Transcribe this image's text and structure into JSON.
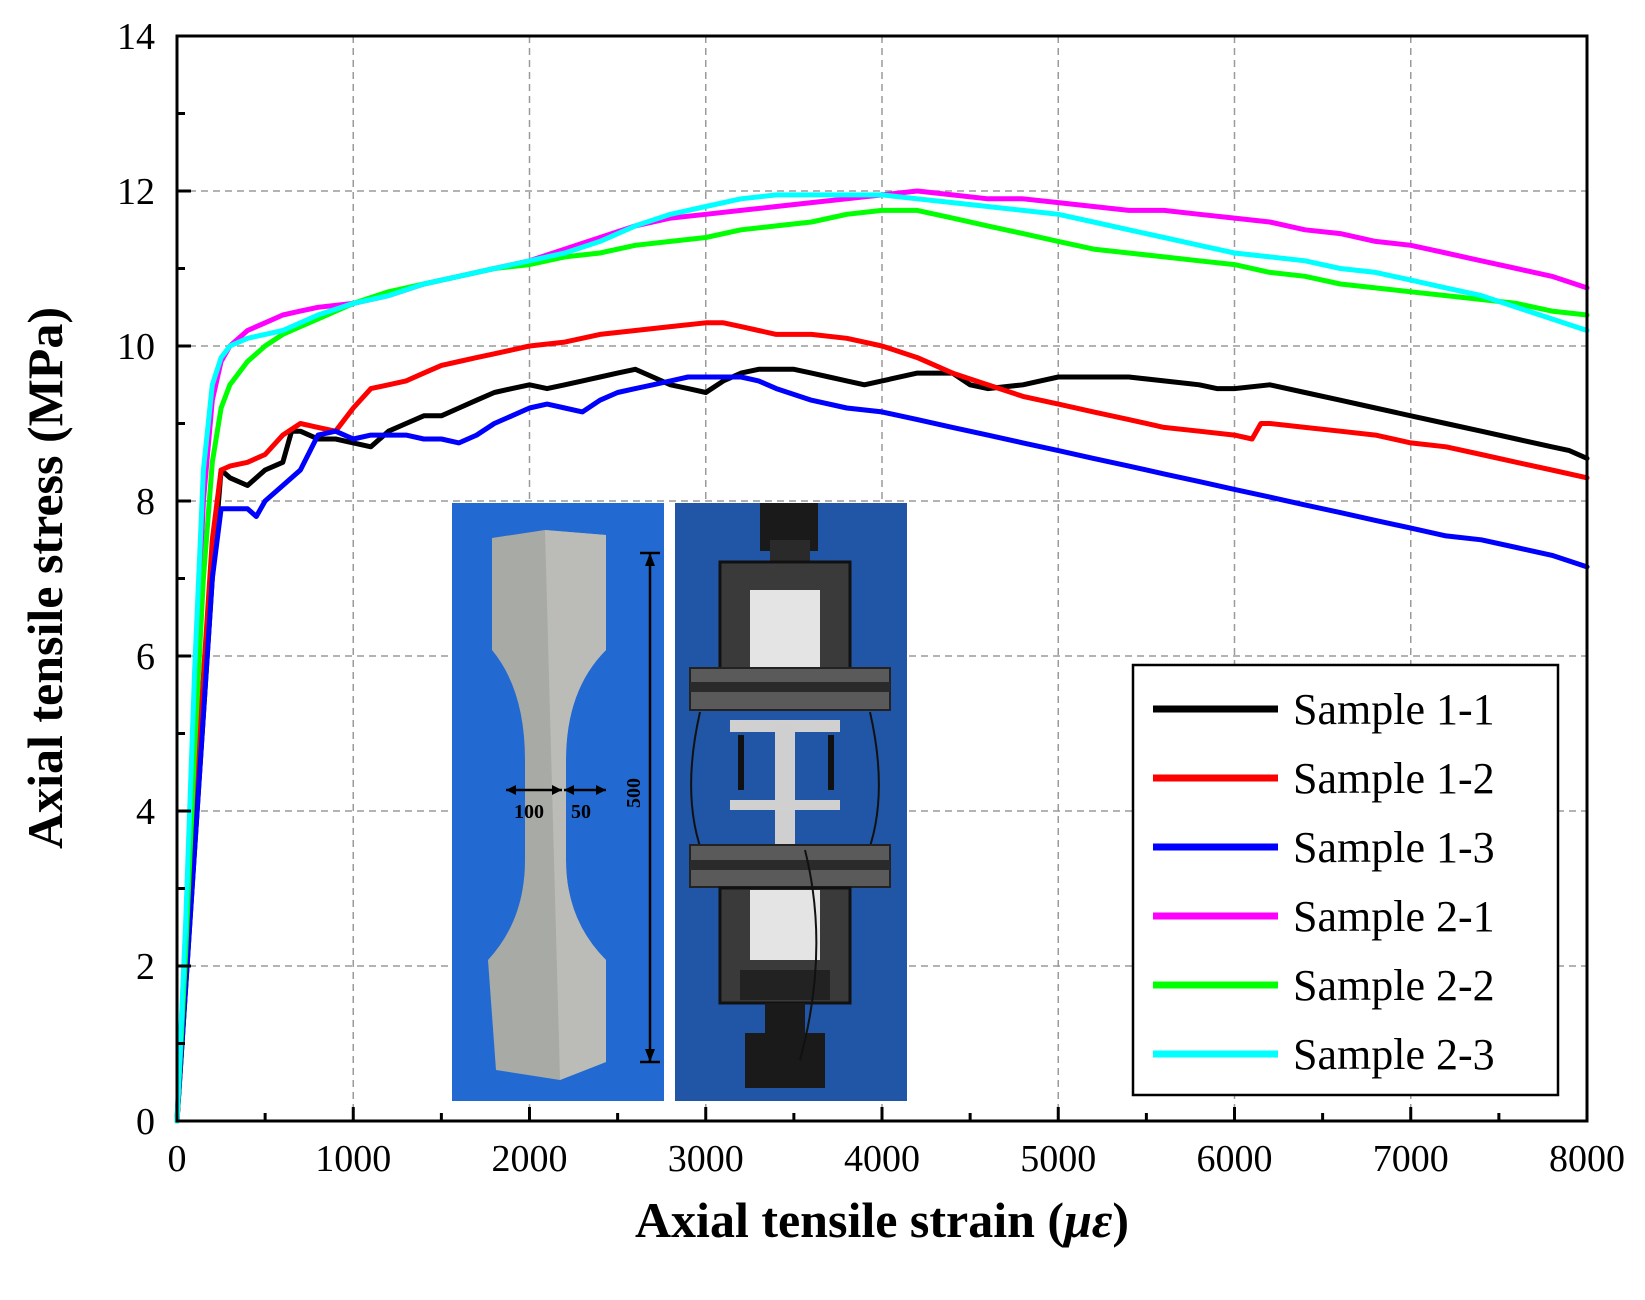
{
  "chart_data": {
    "type": "line",
    "title": "",
    "xlabel": "Axial tensile strain (",
    "xlabel_unit": "με",
    "xlabel_close": ")",
    "ylabel": "Axial tensile stress (MPa)",
    "xlim": [
      0,
      8000
    ],
    "ylim": [
      0,
      14
    ],
    "xticks": [
      "0",
      "1000",
      "2000",
      "3000",
      "4000",
      "5000",
      "6000",
      "7000",
      "8000"
    ],
    "yticks": [
      "0",
      "2",
      "4",
      "6",
      "8",
      "10",
      "12",
      "14"
    ],
    "grid": true,
    "legend_position": "bottom-right",
    "series": [
      {
        "name": "Sample 1-1",
        "color": "#000000",
        "x": [
          0,
          100,
          200,
          250,
          300,
          400,
          450,
          500,
          600,
          650,
          700,
          800,
          900,
          1000,
          1100,
          1200,
          1300,
          1400,
          1500,
          1600,
          1700,
          1800,
          1900,
          2000,
          2100,
          2200,
          2300,
          2400,
          2500,
          2600,
          2700,
          2800,
          2900,
          3000,
          3100,
          3200,
          3300,
          3400,
          3500,
          3600,
          3700,
          3800,
          3900,
          4000,
          4200,
          4400,
          4500,
          4600,
          4800,
          5000,
          5200,
          5400,
          5600,
          5800,
          5900,
          6000,
          6200,
          6400,
          6600,
          6800,
          7000,
          7200,
          7400,
          7600,
          7800,
          7900,
          8000
        ],
        "y": [
          0,
          3.5,
          7.0,
          8.4,
          8.3,
          8.2,
          8.3,
          8.4,
          8.5,
          8.9,
          8.9,
          8.8,
          8.8,
          8.75,
          8.7,
          8.9,
          9.0,
          9.1,
          9.1,
          9.2,
          9.3,
          9.4,
          9.45,
          9.5,
          9.45,
          9.5,
          9.55,
          9.6,
          9.65,
          9.7,
          9.6,
          9.5,
          9.45,
          9.4,
          9.55,
          9.65,
          9.7,
          9.7,
          9.7,
          9.65,
          9.6,
          9.55,
          9.5,
          9.55,
          9.65,
          9.65,
          9.5,
          9.45,
          9.5,
          9.6,
          9.6,
          9.6,
          9.55,
          9.5,
          9.45,
          9.45,
          9.5,
          9.4,
          9.3,
          9.2,
          9.1,
          9.0,
          8.9,
          8.8,
          8.7,
          8.65,
          8.55
        ]
      },
      {
        "name": "Sample 1-2",
        "color": "#ff0000",
        "x": [
          0,
          100,
          200,
          250,
          300,
          400,
          500,
          600,
          700,
          800,
          900,
          1000,
          1100,
          1200,
          1300,
          1400,
          1500,
          1600,
          1700,
          1800,
          1900,
          2000,
          2200,
          2400,
          2600,
          2800,
          3000,
          3100,
          3200,
          3300,
          3400,
          3500,
          3600,
          3800,
          4000,
          4200,
          4400,
          4600,
          4800,
          5000,
          5200,
          5400,
          5600,
          5800,
          6000,
          6100,
          6150,
          6200,
          6400,
          6600,
          6800,
          7000,
          7200,
          7400,
          7600,
          7800,
          8000
        ],
        "y": [
          0,
          4.0,
          7.5,
          8.4,
          8.45,
          8.5,
          8.6,
          8.85,
          9.0,
          8.95,
          8.9,
          9.2,
          9.45,
          9.5,
          9.55,
          9.65,
          9.75,
          9.8,
          9.85,
          9.9,
          9.95,
          10.0,
          10.05,
          10.15,
          10.2,
          10.25,
          10.3,
          10.3,
          10.25,
          10.2,
          10.15,
          10.15,
          10.15,
          10.1,
          10.0,
          9.85,
          9.65,
          9.5,
          9.35,
          9.25,
          9.15,
          9.05,
          8.95,
          8.9,
          8.85,
          8.8,
          9.0,
          9.0,
          8.95,
          8.9,
          8.85,
          8.75,
          8.7,
          8.6,
          8.5,
          8.4,
          8.3
        ]
      },
      {
        "name": "Sample 1-3",
        "color": "#0000ff",
        "x": [
          0,
          100,
          200,
          250,
          300,
          400,
          450,
          500,
          600,
          700,
          800,
          900,
          1000,
          1100,
          1200,
          1300,
          1400,
          1500,
          1600,
          1700,
          1800,
          1900,
          2000,
          2100,
          2200,
          2300,
          2400,
          2500,
          2600,
          2700,
          2800,
          2900,
          3000,
          3100,
          3200,
          3300,
          3400,
          3600,
          3800,
          4000,
          4200,
          4400,
          4600,
          4800,
          5000,
          5200,
          5400,
          5600,
          5800,
          6000,
          6200,
          6400,
          6600,
          6800,
          7000,
          7200,
          7400,
          7600,
          7800,
          8000
        ],
        "y": [
          0,
          3.5,
          7.0,
          7.9,
          7.9,
          7.9,
          7.8,
          8.0,
          8.2,
          8.4,
          8.85,
          8.9,
          8.8,
          8.85,
          8.85,
          8.85,
          8.8,
          8.8,
          8.75,
          8.85,
          9.0,
          9.1,
          9.2,
          9.25,
          9.2,
          9.15,
          9.3,
          9.4,
          9.45,
          9.5,
          9.55,
          9.6,
          9.6,
          9.6,
          9.6,
          9.55,
          9.45,
          9.3,
          9.2,
          9.15,
          9.05,
          8.95,
          8.85,
          8.75,
          8.65,
          8.55,
          8.45,
          8.35,
          8.25,
          8.15,
          8.05,
          7.95,
          7.85,
          7.75,
          7.65,
          7.55,
          7.5,
          7.4,
          7.3,
          7.15
        ]
      },
      {
        "name": "Sample 2-1",
        "color": "#ff00ff",
        "x": [
          0,
          50,
          100,
          150,
          200,
          250,
          300,
          400,
          500,
          600,
          700,
          800,
          1000,
          1200,
          1400,
          1600,
          1800,
          2000,
          2200,
          2400,
          2600,
          2800,
          3000,
          3200,
          3400,
          3600,
          3800,
          4000,
          4200,
          4400,
          4600,
          4800,
          5000,
          5200,
          5400,
          5600,
          5800,
          6000,
          6200,
          6400,
          6600,
          6800,
          7000,
          7200,
          7400,
          7600,
          7800,
          8000
        ],
        "y": [
          0,
          2.5,
          5.5,
          8.0,
          9.3,
          9.8,
          10.0,
          10.2,
          10.3,
          10.4,
          10.45,
          10.5,
          10.55,
          10.65,
          10.8,
          10.9,
          11.0,
          11.1,
          11.25,
          11.4,
          11.55,
          11.65,
          11.7,
          11.75,
          11.8,
          11.85,
          11.9,
          11.95,
          12.0,
          11.95,
          11.9,
          11.9,
          11.85,
          11.8,
          11.75,
          11.75,
          11.7,
          11.65,
          11.6,
          11.5,
          11.45,
          11.35,
          11.3,
          11.2,
          11.1,
          11.0,
          10.9,
          10.75
        ]
      },
      {
        "name": "Sample 2-2",
        "color": "#00ff00",
        "x": [
          0,
          50,
          100,
          150,
          200,
          250,
          300,
          400,
          500,
          600,
          700,
          800,
          1000,
          1200,
          1400,
          1600,
          1800,
          2000,
          2200,
          2400,
          2600,
          2800,
          3000,
          3200,
          3400,
          3600,
          3800,
          4000,
          4200,
          4400,
          4600,
          4800,
          5000,
          5200,
          5400,
          5600,
          5800,
          6000,
          6200,
          6400,
          6600,
          6800,
          7000,
          7200,
          7400,
          7600,
          7800,
          8000
        ],
        "y": [
          0,
          2.2,
          4.8,
          7.0,
          8.5,
          9.2,
          9.5,
          9.8,
          10.0,
          10.15,
          10.25,
          10.35,
          10.55,
          10.7,
          10.8,
          10.9,
          11.0,
          11.05,
          11.15,
          11.2,
          11.3,
          11.35,
          11.4,
          11.5,
          11.55,
          11.6,
          11.7,
          11.75,
          11.75,
          11.65,
          11.55,
          11.45,
          11.35,
          11.25,
          11.2,
          11.15,
          11.1,
          11.05,
          10.95,
          10.9,
          10.8,
          10.75,
          10.7,
          10.65,
          10.6,
          10.55,
          10.45,
          10.4
        ]
      },
      {
        "name": "Sample 2-3",
        "color": "#00ffff",
        "x": [
          0,
          50,
          100,
          150,
          200,
          250,
          300,
          400,
          500,
          600,
          700,
          800,
          1000,
          1200,
          1400,
          1600,
          1800,
          2000,
          2200,
          2400,
          2600,
          2800,
          3000,
          3200,
          3400,
          3600,
          3800,
          4000,
          4200,
          4400,
          4600,
          4800,
          5000,
          5200,
          5400,
          5600,
          5800,
          6000,
          6200,
          6400,
          6600,
          6800,
          7000,
          7200,
          7400,
          7600,
          7800,
          8000
        ],
        "y": [
          0,
          2.6,
          5.8,
          8.4,
          9.5,
          9.85,
          10.0,
          10.1,
          10.15,
          10.2,
          10.3,
          10.4,
          10.55,
          10.65,
          10.8,
          10.9,
          11.0,
          11.1,
          11.2,
          11.35,
          11.55,
          11.7,
          11.8,
          11.9,
          11.95,
          11.95,
          11.95,
          11.95,
          11.9,
          11.85,
          11.8,
          11.75,
          11.7,
          11.6,
          11.5,
          11.4,
          11.3,
          11.2,
          11.15,
          11.1,
          11.0,
          10.95,
          10.85,
          10.75,
          10.65,
          10.5,
          10.35,
          10.2
        ]
      }
    ],
    "inset": {
      "left_photo_dims": [
        "100",
        "50",
        "500"
      ]
    }
  }
}
